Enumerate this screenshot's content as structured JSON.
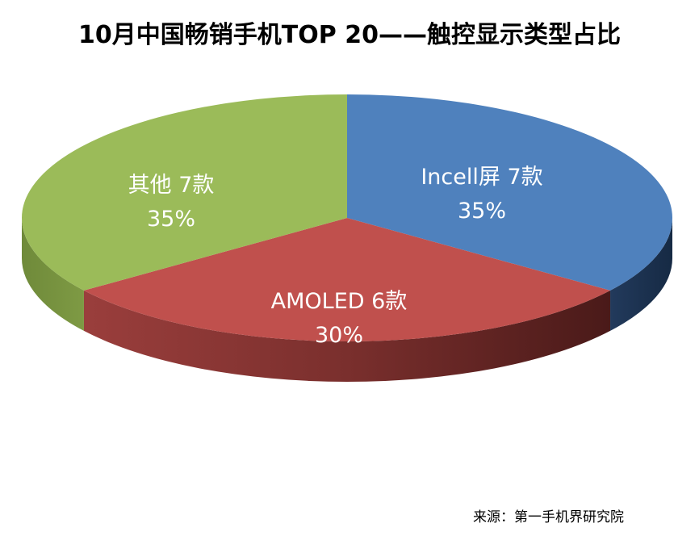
{
  "chart_data": {
    "type": "pie",
    "title": "10月中国畅销手机TOP 20——触控显示类型占比",
    "slices": [
      {
        "name": "Incell屏",
        "count_label": "7款",
        "value": 35,
        "percent_label": "35%",
        "color": "#4F81BD"
      },
      {
        "name": "AMOLED",
        "count_label": "6款",
        "value": 30,
        "percent_label": "30%",
        "color": "#C0504D"
      },
      {
        "name": "其他",
        "count_label": "7款",
        "value": 35,
        "percent_label": "35%",
        "color": "#9BBB59"
      }
    ],
    "legend": "none"
  },
  "source": "来源：第一手机界研究院"
}
